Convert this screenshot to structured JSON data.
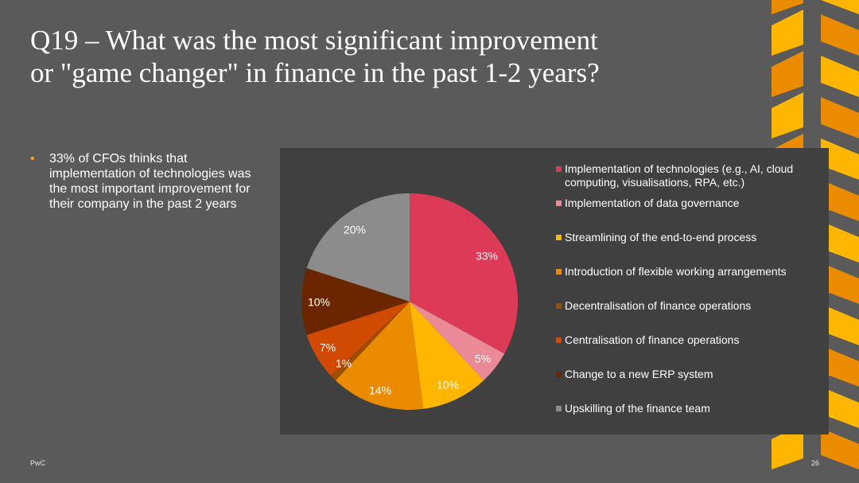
{
  "slide": {
    "title_line1": "Q19 – What was the most significant improvement",
    "title_line2": "or \"game changer\" in finance in the past 1-2 years?",
    "bullet_text": "33% of CFOs thinks that implementation of technologies was the most important improvement for their company in the past 2 years",
    "footer_brand": "PwC",
    "page_number": "26"
  },
  "colors": {
    "background": "#5a5a5b",
    "panel": "#404040",
    "accent": "#ff9f1c"
  },
  "chart_data": {
    "type": "pie",
    "title": "",
    "legend_position": "right",
    "slices": [
      {
        "label": "Implementation of technologies (e.g., AI, cloud computing, visualisations, RPA, etc.)",
        "value": 33,
        "display": "33%",
        "color": "#dc3a56"
      },
      {
        "label": "Implementation of data governance",
        "value": 5,
        "display": "5%",
        "color": "#ea8a96"
      },
      {
        "label": "Streamlining of the end-to-end process",
        "value": 10,
        "display": "10%",
        "color": "#ffb600"
      },
      {
        "label": "Introduction of flexible working arrangements",
        "value": 14,
        "display": "14%",
        "color": "#eb8c00"
      },
      {
        "label": "Decentralisation of finance operations",
        "value": 1,
        "display": "1%",
        "color": "#9e4d00"
      },
      {
        "label": "Centralisation of finance operations",
        "value": 7,
        "display": "7%",
        "color": "#d04a02"
      },
      {
        "label": "Change to a new ERP system",
        "value": 10,
        "display": "10%",
        "color": "#6b2600"
      },
      {
        "label": "Upskilling of the finance team",
        "value": 20,
        "display": "20%",
        "color": "#8c8c8c"
      }
    ]
  }
}
